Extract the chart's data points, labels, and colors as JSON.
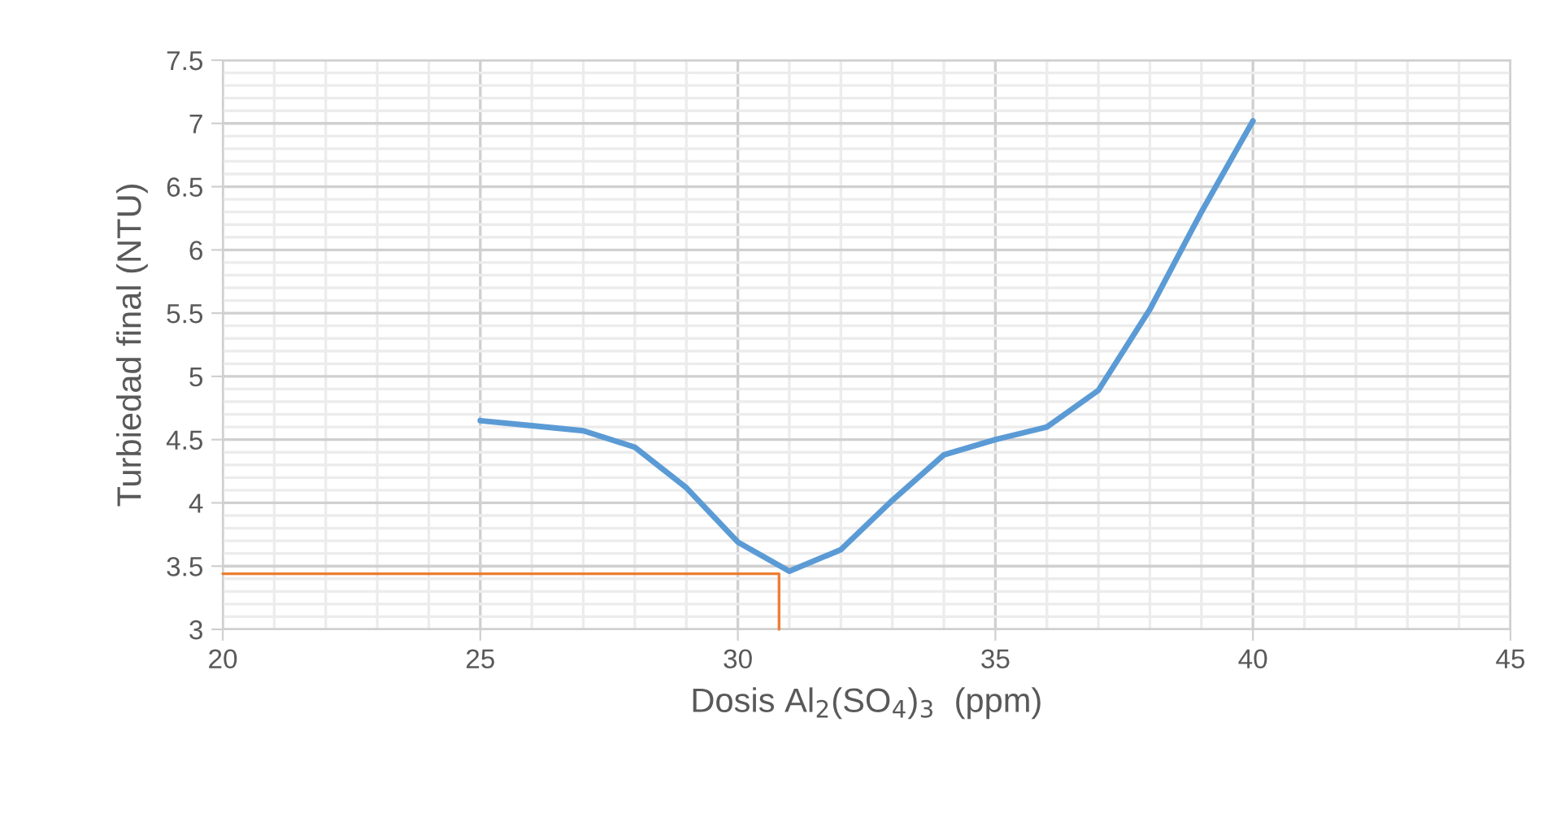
{
  "chart_data": {
    "type": "line",
    "xlabel": "Dosis Al$_{2}$(SO$_{4}$)$_{3}$  (ppm)",
    "ylabel": "Turbiedad final (NTU)",
    "xlim": [
      20,
      45
    ],
    "xticks": [
      20,
      25,
      30,
      35,
      40,
      45
    ],
    "ylim": [
      3,
      7.5
    ],
    "yticks": [
      3,
      {
        "value": 3.5,
        "label": "3.5"
      },
      4,
      {
        "value": 4.5,
        "label": "4.5"
      },
      5,
      {
        "value": 5.5,
        "label": "5.5"
      },
      6,
      {
        "value": 6.5,
        "label": "6.5"
      },
      7,
      {
        "value": 7.5,
        "label": "7.5"
      }
    ],
    "grid": true,
    "marker": "none",
    "line_style": "solid",
    "series": [
      {
        "color": "#5b9bd5",
        "x": [
          25,
          26,
          27,
          28,
          29,
          30,
          31,
          32,
          33,
          34,
          35,
          36,
          37,
          38,
          39,
          40
        ],
        "values": [
          4.65,
          4.61,
          4.57,
          4.44,
          4.12,
          3.69,
          3.46,
          3.63,
          4.02,
          4.38,
          4.5,
          4.6,
          4.89,
          5.53,
          6.3,
          7.02
        ]
      },
      {
        "color": "#ed7d31",
        "x": [
          20,
          30.8,
          30.8
        ],
        "values": [
          3.44,
          3.44,
          3
        ]
      }
    ]
  }
}
